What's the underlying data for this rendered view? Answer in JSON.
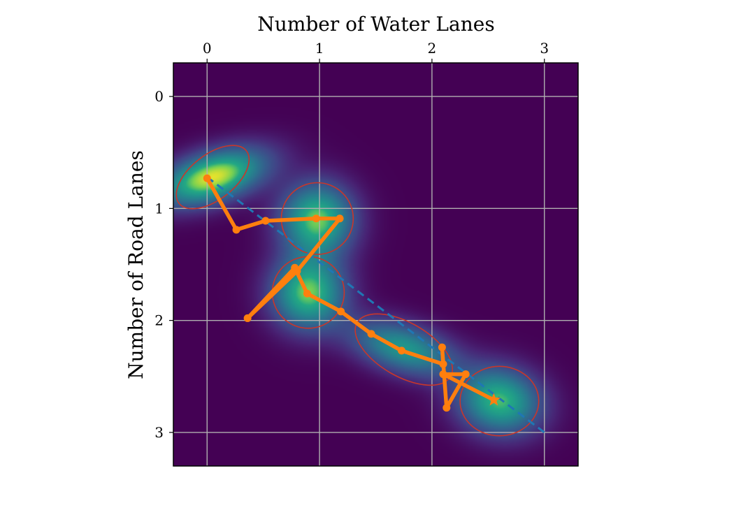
{
  "chart_data": {
    "type": "heatmap",
    "title": "",
    "xlabel": "Number of Water Lanes",
    "ylabel": "Number of Road Lanes",
    "x_axis_position": "top",
    "y_axis_inverted": true,
    "xlim": [
      -0.3,
      3.3
    ],
    "ylim": [
      3.3,
      -0.3
    ],
    "xticks": [
      0,
      1,
      2,
      3
    ],
    "yticks": [
      0,
      1,
      2,
      3
    ],
    "grid": true,
    "colormap": "viridis",
    "density_components": [
      {
        "mean_x": 0.05,
        "mean_y": 0.72,
        "weight": 1.0,
        "sx": 0.32,
        "sy": 0.17,
        "rho": -0.45
      },
      {
        "mean_x": 0.98,
        "mean_y": 1.1,
        "weight": 0.85,
        "sx": 0.22,
        "sy": 0.22,
        "rho": 0.0
      },
      {
        "mean_x": 0.9,
        "mean_y": 1.75,
        "weight": 0.85,
        "sx": 0.22,
        "sy": 0.22,
        "rho": 0.0
      },
      {
        "mean_x": 1.75,
        "mean_y": 2.25,
        "weight": 0.65,
        "sx": 0.32,
        "sy": 0.17,
        "rho": 0.45
      },
      {
        "mean_x": 2.6,
        "mean_y": 2.72,
        "weight": 0.8,
        "sx": 0.25,
        "sy": 0.2,
        "rho": 0.1
      }
    ],
    "ellipses": [
      {
        "cx": 0.05,
        "cy": 0.72,
        "rx": 0.38,
        "ry": 0.2,
        "angle_deg": -38
      },
      {
        "cx": 0.98,
        "cy": 1.09,
        "rx": 0.32,
        "ry": 0.32,
        "angle_deg": 0
      },
      {
        "cx": 0.9,
        "cy": 1.75,
        "rx": 0.32,
        "ry": 0.32,
        "angle_deg": 0
      },
      {
        "cx": 1.75,
        "cy": 2.26,
        "rx": 0.48,
        "ry": 0.24,
        "angle_deg": 30
      },
      {
        "cx": 2.6,
        "cy": 2.72,
        "rx": 0.35,
        "ry": 0.31,
        "angle_deg": 0
      }
    ],
    "reference_line": {
      "x": [
        0,
        3
      ],
      "y": [
        0.72,
        3.0
      ],
      "style": "dashed",
      "color": "#1f77b4"
    },
    "path": {
      "color": "#ff7f0e",
      "x": [
        0.0,
        0.26,
        0.52,
        0.97,
        1.18,
        0.8,
        0.36,
        0.78,
        0.89,
        1.19,
        1.46,
        1.73,
        2.1,
        2.09,
        2.13,
        2.3,
        2.1,
        2.55
      ],
      "y": [
        0.73,
        1.19,
        1.11,
        1.09,
        1.09,
        1.56,
        1.98,
        1.53,
        1.76,
        1.92,
        2.12,
        2.27,
        2.39,
        2.24,
        2.78,
        2.48,
        2.48,
        2.71
      ],
      "end_marker": "star"
    },
    "colors": {
      "ellipse": "#c8362b",
      "grid": "#b0b0b0",
      "path": "#ff7f0e",
      "reference": "#1f77b4"
    }
  }
}
